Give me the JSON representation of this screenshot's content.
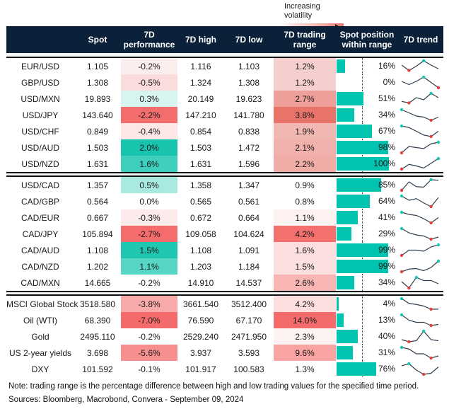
{
  "legend": {
    "label": "Increasing volatility"
  },
  "headers": [
    "",
    "Spot",
    "7D performance",
    "7D high",
    "7D low",
    "7D trading range",
    "Spot position within range",
    "7D trend"
  ],
  "colors": {
    "header_bg": "#0b2039",
    "bar": "#00c4b0",
    "max_dot": "#19c3b0",
    "min_dot": "#e0403c",
    "line": "#2f3e4e"
  },
  "groups": [
    [
      {
        "name": "EUR/USD",
        "spot": "1.105",
        "perf": "-0.2%",
        "perf_bg": "#fdeeee",
        "high": "1.116",
        "low": "1.103",
        "range": "1.2%",
        "range_bg": "#f4cfcd",
        "position": 16,
        "position_label": "16%",
        "trend": [
          0.6,
          0.1,
          0.5,
          1,
          0.6,
          0.25
        ]
      },
      {
        "name": "GBP/USD",
        "spot": "1.308",
        "perf": "-0.5%",
        "perf_bg": "#fbdcdc",
        "high": "1.324",
        "low": "1.308",
        "range": "1.2%",
        "range_bg": "#f4cfcd",
        "position": 0,
        "position_label": "0%",
        "trend": [
          0.6,
          0.3,
          0.6,
          1,
          0.5,
          0
        ]
      },
      {
        "name": "USD/MXN",
        "spot": "19.893",
        "perf": "0.3%",
        "perf_bg": "#d8f4f1",
        "high": "20.149",
        "low": "19.623",
        "range": "2.7%",
        "range_bg": "#ee9f99",
        "position": 51,
        "position_label": "51%",
        "trend": [
          0.25,
          0.1,
          0.6,
          0.4,
          1,
          0.6
        ]
      },
      {
        "name": "USD/JPY",
        "spot": "143.640",
        "perf": "-2.2%",
        "perf_bg": "#f36d6d",
        "high": "147.210",
        "low": "141.780",
        "range": "3.8%",
        "range_bg": "#e87368",
        "position": 34,
        "position_label": "34%",
        "trend": [
          1,
          0.7,
          0.4,
          0.3,
          0,
          0.3
        ]
      },
      {
        "name": "USD/CHF",
        "spot": "0.849",
        "perf": "-0.4%",
        "perf_bg": "#fde6e6",
        "high": "0.854",
        "low": "0.838",
        "range": "1.9%",
        "range_bg": "#f1b7b2",
        "position": 67,
        "position_label": "67%",
        "trend": [
          1,
          0.85,
          0.5,
          0.15,
          0,
          0.5
        ]
      },
      {
        "name": "USD/AUD",
        "spot": "1.503",
        "perf": "2.0%",
        "perf_bg": "#18c4ad",
        "high": "1.503",
        "low": "1.472",
        "range": "2.1%",
        "range_bg": "#f0b0ab",
        "position": 98,
        "position_label": "98%",
        "trend": [
          0,
          0.6,
          0.5,
          0.4,
          0.85,
          1
        ]
      },
      {
        "name": "USD/NZD",
        "spot": "1.631",
        "perf": "1.6%",
        "perf_bg": "#3fcfbd",
        "high": "1.631",
        "low": "1.596",
        "range": "2.2%",
        "range_bg": "#f0ada8",
        "position": 100,
        "position_label": "100%",
        "trend": [
          0,
          0.45,
          0.3,
          0.1,
          0.55,
          1
        ]
      }
    ],
    [
      {
        "name": "USD/CAD",
        "spot": "1.357",
        "perf": "0.5%",
        "perf_bg": "#a8e9e0",
        "high": "1.358",
        "low": "1.347",
        "range": "0.9%",
        "range_bg": "#ffffff",
        "position": 85,
        "position_label": "85%",
        "trend": [
          0,
          0.8,
          0.35,
          0.3,
          1,
          0.95
        ]
      },
      {
        "name": "CAD/GBP",
        "spot": "0.564",
        "perf": "0.0%",
        "perf_bg": "#ffffff",
        "high": "0.565",
        "low": "0.561",
        "range": "0.8%",
        "range_bg": "#ffffff",
        "position": 64,
        "position_label": "64%",
        "trend": [
          1,
          0.6,
          0.75,
          0.35,
          0,
          0.85
        ]
      },
      {
        "name": "CAD/EUR",
        "spot": "0.667",
        "perf": "-0.3%",
        "perf_bg": "#fdeaea",
        "high": "0.672",
        "low": "0.664",
        "range": "1.1%",
        "range_bg": "#fdf2f1",
        "position": 41,
        "position_label": "41%",
        "trend": [
          1,
          0.8,
          0.7,
          0.4,
          0,
          0.5
        ]
      },
      {
        "name": "CAD/JPY",
        "spot": "105.894",
        "perf": "-2.7%",
        "perf_bg": "#f46c6c",
        "high": "109.058",
        "low": "104.624",
        "range": "4.2%",
        "range_bg": "#f4706e",
        "position": 29,
        "position_label": "29%",
        "trend": [
          1,
          0.6,
          0.4,
          0.3,
          0,
          0.2
        ]
      },
      {
        "name": "CAD/AUD",
        "spot": "1.108",
        "perf": "1.5%",
        "perf_bg": "#1fc6b0",
        "high": "1.108",
        "low": "1.091",
        "range": "1.6%",
        "range_bg": "#fbdedd",
        "position": 99,
        "position_label": "99%",
        "trend": [
          0,
          0.5,
          0.5,
          0.4,
          0.8,
          1
        ]
      },
      {
        "name": "CAD/NZD",
        "spot": "1.202",
        "perf": "1.1%",
        "perf_bg": "#57d6c6",
        "high": "1.203",
        "low": "1.184",
        "range": "1.5%",
        "range_bg": "#fbe0df",
        "position": 99,
        "position_label": "99%",
        "trend": [
          0,
          0.25,
          0.3,
          0.1,
          0.4,
          1
        ]
      },
      {
        "name": "CAD/MXN",
        "spot": "14.665",
        "perf": "-0.2%",
        "perf_bg": "#ffffff",
        "high": "14.910",
        "low": "14.537",
        "range": "2.6%",
        "range_bg": "#f7b5b3",
        "position": 34,
        "position_label": "34%",
        "trend": [
          0.6,
          0,
          1,
          0.7,
          0.7,
          0.4
        ]
      }
    ],
    [
      {
        "name": "MSCI Global Stock",
        "spot": "3518.580",
        "perf": "-3.8%",
        "perf_bg": "#f9aaaa",
        "high": "3661.540",
        "low": "3512.400",
        "range": "4.2%",
        "range_bg": "#fddede",
        "position": 4,
        "position_label": "4%",
        "trend": [
          1,
          0.55,
          0.45,
          0.3,
          0,
          0.01
        ]
      },
      {
        "name": "Oil (WTI)",
        "spot": "68.390",
        "perf": "-7.0%",
        "perf_bg": "#f56b6b",
        "high": "76.590",
        "low": "67.170",
        "range": "14.0%",
        "range_bg": "#f56b6b",
        "position": 13,
        "position_label": "13%",
        "trend": [
          1,
          0.5,
          0.3,
          0.3,
          0,
          0.1
        ]
      },
      {
        "name": "Gold",
        "spot": "2495.110",
        "perf": "-0.2%",
        "perf_bg": "#ffffff",
        "high": "2529.240",
        "low": "2471.950",
        "range": "2.3%",
        "range_bg": "#fdf3f3",
        "position": 40,
        "position_label": "40%",
        "trend": [
          0.2,
          0,
          0.1,
          1,
          0.2,
          0.1
        ]
      },
      {
        "name": "US 2-year yields",
        "spot": "3.698",
        "perf": "-5.6%",
        "perf_bg": "#f78f8f",
        "high": "3.937",
        "low": "3.593",
        "range": "9.6%",
        "range_bg": "#f9a3a3",
        "position": 31,
        "position_label": "31%",
        "trend": [
          1,
          0.85,
          0.4,
          0.4,
          0,
          0.2
        ]
      },
      {
        "name": "DXY",
        "spot": "101.592",
        "perf": "-0.1%",
        "perf_bg": "#ffffff",
        "high": "101.917",
        "low": "100.583",
        "range": "1.3%",
        "range_bg": "#ffffff",
        "position": 76,
        "position_label": "76%",
        "trend": [
          0.8,
          1,
          0.4,
          0,
          0.1,
          0.7
        ]
      }
    ]
  ],
  "footer": {
    "note": "Note: trading range is the percentage difference between high and low trading values for the specified time period.",
    "sources": "Sources: Bloomberg, Macrobond, Convera - September 09, 2024"
  }
}
